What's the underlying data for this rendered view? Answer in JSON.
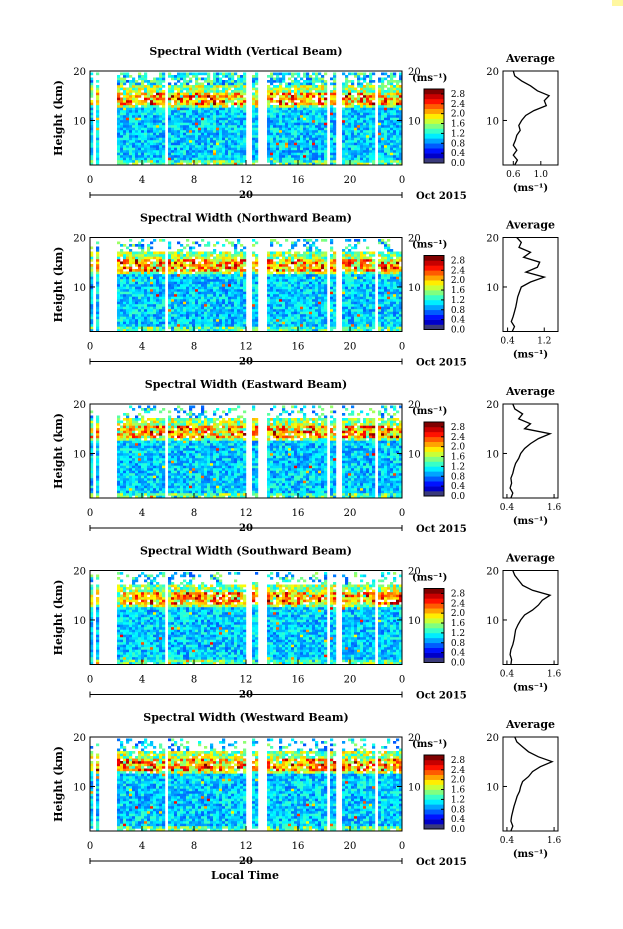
{
  "figure": {
    "corner_mark_color": "#fff7a0",
    "x_axis_label": "Local Time",
    "date_label": "Oct 2015",
    "day_label": "20",
    "y_axis_label": "Height (km)",
    "unit_label": "(ms⁻¹)",
    "average_title": "Average"
  },
  "chart_data": [
    {
      "type": "heatmap",
      "title": "Spectral Width (Vertical Beam)",
      "xlabel": "",
      "ylabel": "Height (km)",
      "x_ticks": [
        "0",
        "4",
        "8",
        "12",
        "16",
        "20",
        "0"
      ],
      "xlim": [
        0,
        24
      ],
      "y_ticks": [
        "10",
        "20"
      ],
      "ylim": [
        1,
        20
      ],
      "colorbar": {
        "label": "(ms⁻¹)",
        "ticks": [
          "2.8",
          "2.4",
          "2.0",
          "1.6",
          "1.2",
          "0.8",
          "0.4",
          "0.0"
        ],
        "range": [
          0,
          3.0
        ]
      },
      "data_gaps_hours": [
        [
          0.25,
          0.5
        ],
        [
          0.6,
          2.0
        ],
        [
          5.8,
          6.1
        ],
        [
          12.1,
          12.5
        ],
        [
          13.0,
          13.5
        ],
        [
          18.3,
          18.55
        ],
        [
          19.0,
          19.3
        ],
        [
          21.9,
          22.2
        ]
      ],
      "average_profile": {
        "title": "Average",
        "xlabel": "(ms⁻¹)",
        "x_ticks": [
          "0.6",
          "1.0"
        ],
        "xlim": [
          0.45,
          1.25
        ],
        "y_ticks": [
          "10",
          "20"
        ],
        "ylim": [
          1,
          20
        ],
        "heights": [
          1,
          2,
          3,
          4,
          5,
          6,
          7,
          8,
          9,
          10,
          11,
          12,
          13,
          14,
          15,
          16,
          17,
          18,
          19,
          20
        ],
        "values": [
          0.62,
          0.66,
          0.6,
          0.65,
          0.6,
          0.63,
          0.65,
          0.7,
          0.68,
          0.72,
          0.78,
          0.9,
          1.08,
          1.05,
          1.12,
          0.95,
          0.85,
          0.72,
          0.62,
          0.6
        ]
      }
    },
    {
      "type": "heatmap",
      "title": "Spectral Width (Northward Beam)",
      "xlabel": "",
      "ylabel": "Height (km)",
      "x_ticks": [
        "0",
        "4",
        "8",
        "12",
        "16",
        "20",
        "0"
      ],
      "xlim": [
        0,
        24
      ],
      "y_ticks": [
        "10",
        "20"
      ],
      "ylim": [
        1,
        20
      ],
      "colorbar": {
        "label": "(ms⁻¹)",
        "ticks": [
          "2.8",
          "2.4",
          "2.0",
          "1.6",
          "1.2",
          "0.8",
          "0.4",
          "0.0"
        ],
        "range": [
          0,
          3.0
        ]
      },
      "data_gaps_hours": [
        [
          0.25,
          0.5
        ],
        [
          0.6,
          2.0
        ],
        [
          5.8,
          6.1
        ],
        [
          12.1,
          12.5
        ],
        [
          13.0,
          13.5
        ],
        [
          18.3,
          18.55
        ],
        [
          19.0,
          19.3
        ],
        [
          21.9,
          22.2
        ]
      ],
      "average_profile": {
        "title": "Average",
        "xlabel": "(ms⁻¹)",
        "x_ticks": [
          "0.4",
          "1.2"
        ],
        "xlim": [
          0.3,
          1.5
        ],
        "y_ticks": [
          "10",
          "20"
        ],
        "ylim": [
          1,
          20
        ],
        "heights": [
          1,
          2,
          3,
          4,
          5,
          6,
          7,
          8,
          9,
          10,
          11,
          12,
          13,
          14,
          15,
          16,
          17,
          18,
          19,
          20
        ],
        "values": [
          0.5,
          0.55,
          0.48,
          0.52,
          0.55,
          0.58,
          0.6,
          0.62,
          0.66,
          0.7,
          0.9,
          1.2,
          0.8,
          1.05,
          1.1,
          0.75,
          0.9,
          0.65,
          0.7,
          0.6
        ]
      }
    },
    {
      "type": "heatmap",
      "title": "Spectral Width (Eastward Beam)",
      "xlabel": "",
      "ylabel": "Height (km)",
      "x_ticks": [
        "0",
        "4",
        "8",
        "12",
        "16",
        "20",
        "0"
      ],
      "xlim": [
        0,
        24
      ],
      "y_ticks": [
        "10",
        "20"
      ],
      "ylim": [
        1,
        20
      ],
      "colorbar": {
        "label": "(ms⁻¹)",
        "ticks": [
          "2.8",
          "2.4",
          "2.0",
          "1.6",
          "1.2",
          "0.8",
          "0.4",
          "0.0"
        ],
        "range": [
          0,
          3.0
        ]
      },
      "data_gaps_hours": [
        [
          0.25,
          0.5
        ],
        [
          0.6,
          2.0
        ],
        [
          5.8,
          6.1
        ],
        [
          12.1,
          12.5
        ],
        [
          13.0,
          13.5
        ],
        [
          18.3,
          18.55
        ],
        [
          19.0,
          19.3
        ],
        [
          21.9,
          22.2
        ]
      ],
      "average_profile": {
        "title": "Average",
        "xlabel": "(ms⁻¹)",
        "x_ticks": [
          "0.4",
          "1.6"
        ],
        "xlim": [
          0.3,
          1.7
        ],
        "y_ticks": [
          "10",
          "20"
        ],
        "ylim": [
          1,
          20
        ],
        "heights": [
          1,
          2,
          3,
          4,
          5,
          6,
          7,
          8,
          9,
          10,
          11,
          12,
          13,
          14,
          15,
          16,
          17,
          18,
          19,
          20
        ],
        "values": [
          0.5,
          0.55,
          0.48,
          0.52,
          0.5,
          0.55,
          0.58,
          0.62,
          0.7,
          0.75,
          0.85,
          1.0,
          1.2,
          1.5,
          0.85,
          1.0,
          0.7,
          0.8,
          0.6,
          0.55
        ]
      }
    },
    {
      "type": "heatmap",
      "title": "Spectral Width (Southward Beam)",
      "xlabel": "",
      "ylabel": "Height (km)",
      "x_ticks": [
        "0",
        "4",
        "8",
        "12",
        "16",
        "20",
        "0"
      ],
      "xlim": [
        0,
        24
      ],
      "y_ticks": [
        "10",
        "20"
      ],
      "ylim": [
        1,
        20
      ],
      "colorbar": {
        "label": "(ms⁻¹)",
        "ticks": [
          "2.8",
          "2.4",
          "2.0",
          "1.6",
          "1.2",
          "0.8",
          "0.4",
          "0.0"
        ],
        "range": [
          0,
          3.0
        ]
      },
      "data_gaps_hours": [
        [
          0.25,
          0.5
        ],
        [
          0.6,
          2.0
        ],
        [
          5.8,
          6.1
        ],
        [
          12.1,
          12.5
        ],
        [
          13.0,
          13.5
        ],
        [
          18.3,
          18.55
        ],
        [
          19.0,
          19.3
        ],
        [
          21.9,
          22.2
        ]
      ],
      "average_profile": {
        "title": "Average",
        "xlabel": "(ms⁻¹)",
        "x_ticks": [
          "0.4",
          "1.6"
        ],
        "xlim": [
          0.3,
          1.7
        ],
        "y_ticks": [
          "10",
          "20"
        ],
        "ylim": [
          1,
          20
        ],
        "heights": [
          1,
          2,
          3,
          4,
          5,
          6,
          7,
          8,
          9,
          10,
          11,
          12,
          13,
          14,
          15,
          16,
          17,
          18,
          19,
          20
        ],
        "values": [
          0.5,
          0.52,
          0.48,
          0.5,
          0.55,
          0.58,
          0.6,
          0.62,
          0.68,
          0.75,
          0.85,
          1.05,
          1.2,
          1.3,
          1.5,
          1.05,
          0.8,
          0.7,
          0.6,
          0.55
        ]
      }
    },
    {
      "type": "heatmap",
      "title": "Spectral Width (Westward Beam)",
      "xlabel": "Local Time",
      "ylabel": "Height (km)",
      "x_ticks": [
        "0",
        "4",
        "8",
        "12",
        "16",
        "20",
        "0"
      ],
      "xlim": [
        0,
        24
      ],
      "y_ticks": [
        "10",
        "20"
      ],
      "ylim": [
        1,
        20
      ],
      "colorbar": {
        "label": "(ms⁻¹)",
        "ticks": [
          "2.8",
          "2.4",
          "2.0",
          "1.6",
          "1.2",
          "0.8",
          "0.4",
          "0.0"
        ],
        "range": [
          0,
          3.0
        ]
      },
      "data_gaps_hours": [
        [
          0.25,
          0.5
        ],
        [
          0.6,
          2.0
        ],
        [
          5.8,
          6.1
        ],
        [
          12.1,
          12.5
        ],
        [
          13.0,
          13.5
        ],
        [
          18.3,
          18.55
        ],
        [
          19.0,
          19.3
        ],
        [
          21.9,
          22.2
        ]
      ],
      "average_profile": {
        "title": "Average",
        "xlabel": "(ms⁻¹)",
        "x_ticks": [
          "0.4",
          "1.6"
        ],
        "xlim": [
          0.3,
          1.7
        ],
        "y_ticks": [
          "10",
          "20"
        ],
        "ylim": [
          1,
          20
        ],
        "heights": [
          1,
          2,
          3,
          4,
          5,
          6,
          7,
          8,
          9,
          10,
          11,
          12,
          13,
          14,
          15,
          16,
          17,
          18,
          19,
          20
        ],
        "values": [
          0.5,
          0.55,
          0.5,
          0.52,
          0.55,
          0.58,
          0.62,
          0.66,
          0.72,
          0.75,
          0.8,
          0.95,
          1.05,
          1.25,
          1.55,
          1.2,
          0.95,
          0.8,
          0.65,
          0.6
        ]
      }
    }
  ]
}
